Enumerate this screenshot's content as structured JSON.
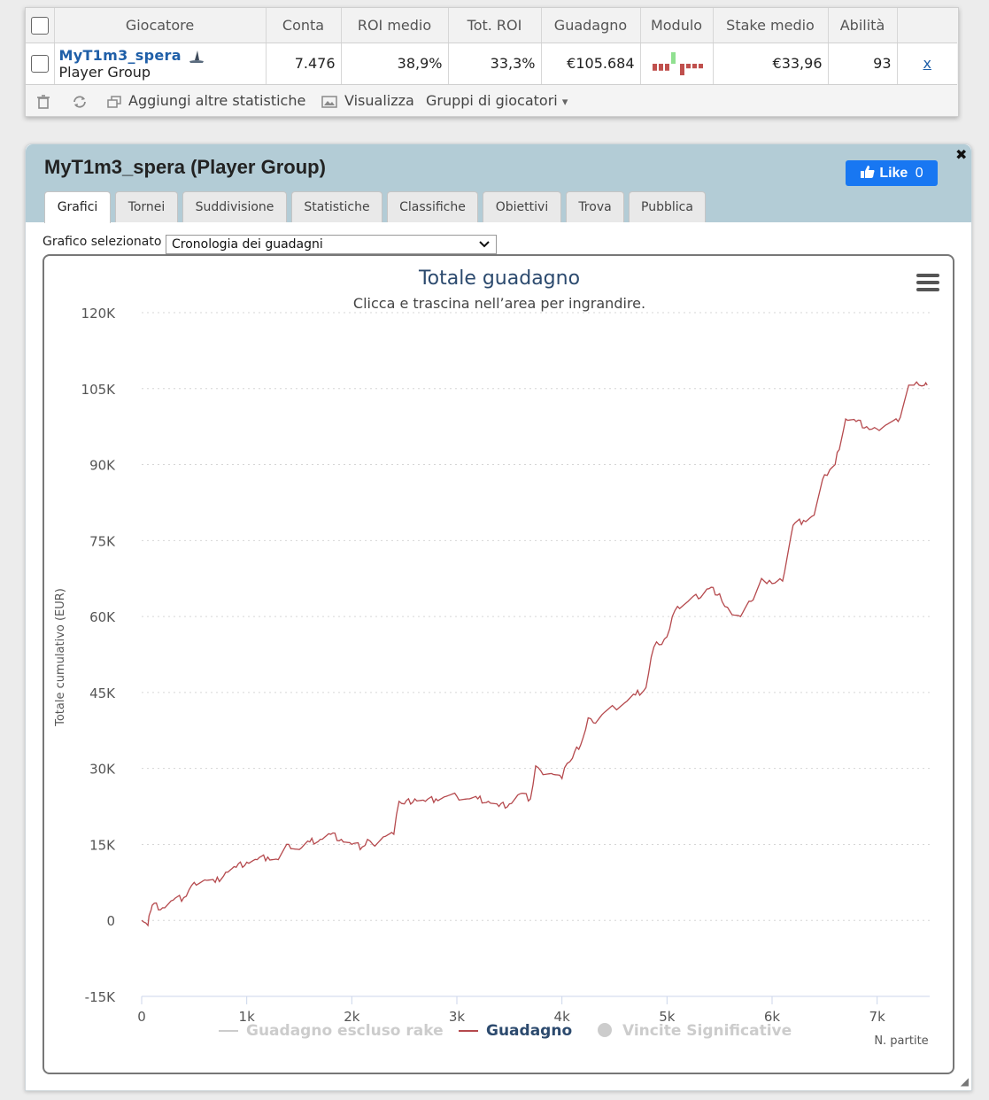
{
  "table": {
    "headers": [
      "Giocatore",
      "Conta",
      "ROI medio",
      "Tot. ROI",
      "Guadagno",
      "Modulo",
      "Stake medio",
      "Abilità"
    ],
    "row": {
      "name": "MyT1m3_spera",
      "group": "Player Group",
      "conta": "7.476",
      "roi_medio": "38,9%",
      "tot_roi": "33,3%",
      "guadagno": "€105.684",
      "stake_medio": "€33,96",
      "abilita": "93",
      "remove": "x"
    },
    "form_bars": [
      {
        "color": "#c0504d",
        "value": -3
      },
      {
        "color": "#c0504d",
        "value": -3
      },
      {
        "color": "#c0504d",
        "value": -3
      },
      {
        "color": "#90e090",
        "value": 5
      },
      {
        "color": "#c0504d",
        "value": -5
      },
      {
        "color": "#c0504d",
        "value": -2
      },
      {
        "color": "#c0504d",
        "value": -2
      },
      {
        "color": "#c0504d",
        "value": -2
      }
    ]
  },
  "toolbar": {
    "add_stats": "Aggiungi altre statistiche",
    "view": "Visualizza",
    "groups": "Gruppi di giocatori",
    "groups_arrow": "▾",
    "icons": [
      "trash-icon",
      "refresh-icon",
      "copy-icon",
      "image-icon"
    ]
  },
  "panel": {
    "title": "MyT1m3_spera (Player Group)",
    "like_label": "Like",
    "like_count": "0",
    "close_label": "✖",
    "tabs": [
      "Grafici",
      "Tornei",
      "Suddivisione",
      "Statistiche",
      "Classifiche",
      "Obiettivi",
      "Trova",
      "Pubblica"
    ],
    "active_tab": "Grafici",
    "selector_label": "Grafico selezionato",
    "selector_value": "Cronologia dei guadagni"
  },
  "chart_data": {
    "type": "line",
    "title": "Totale guadagno",
    "subtitle": "Clicca e trascina nell’area per ingrandire.",
    "ylabel": "Totale cumulativo (EUR)",
    "xlabel": "N. partite",
    "ylim": [
      -15000,
      120000
    ],
    "xlim": [
      0,
      7500
    ],
    "yticks": [
      "120K",
      "105K",
      "90K",
      "75K",
      "60K",
      "45K",
      "30K",
      "15K",
      "0",
      "-15K"
    ],
    "xticks": [
      "0",
      "1k",
      "2k",
      "3k",
      "4k",
      "5k",
      "6k",
      "7k"
    ],
    "grid": true,
    "legend": [
      {
        "name": "Guadagno escluso rake",
        "color": "#cccccc",
        "kind": "line"
      },
      {
        "name": "Guadagno",
        "color": "#b5494d",
        "kind": "line"
      },
      {
        "name": "Vincite Significative",
        "color": "#cccccc",
        "kind": "dot"
      }
    ],
    "series": [
      {
        "name": "Guadagno",
        "color": "#b5494d",
        "x": [
          0,
          60,
          80,
          100,
          200,
          300,
          400,
          450,
          500,
          600,
          700,
          800,
          900,
          1000,
          1100,
          1200,
          1300,
          1400,
          1500,
          1600,
          1700,
          1800,
          1900,
          2000,
          2100,
          2150,
          2200,
          2300,
          2400,
          2450,
          2500,
          2600,
          2700,
          2800,
          2900,
          3000,
          3100,
          3200,
          3300,
          3400,
          3500,
          3600,
          3700,
          3750,
          3800,
          3900,
          4000,
          4050,
          4100,
          4200,
          4250,
          4300,
          4400,
          4500,
          4600,
          4700,
          4800,
          4850,
          4900,
          4950,
          5000,
          5050,
          5100,
          5200,
          5250,
          5300,
          5400,
          5500,
          5550,
          5600,
          5700,
          5800,
          5900,
          5950,
          6000,
          6050,
          6100,
          6200,
          6300,
          6400,
          6500,
          6550,
          6600,
          6700,
          6800,
          6900,
          6950,
          7000,
          7100,
          7200,
          7300,
          7350,
          7400,
          7450,
          7476
        ],
        "y": [
          0,
          -1000,
          1500,
          3000,
          2500,
          4000,
          4500,
          6000,
          7500,
          8000,
          7500,
          9500,
          10500,
          11500,
          12000,
          12500,
          12000,
          15000,
          14000,
          15500,
          16000,
          17000,
          16000,
          15000,
          14500,
          16000,
          15000,
          16500,
          17000,
          23500,
          23000,
          24000,
          23500,
          24000,
          24500,
          24500,
          24000,
          24000,
          23500,
          22500,
          23000,
          25000,
          24000,
          30500,
          29500,
          29000,
          28000,
          31000,
          32000,
          36000,
          40000,
          39000,
          41000,
          42000,
          43000,
          44500,
          46000,
          52000,
          55000,
          54500,
          56000,
          60000,
          62000,
          63000,
          64000,
          63500,
          65500,
          64500,
          62000,
          61000,
          60000,
          63000,
          67500,
          66500,
          66500,
          67000,
          67000,
          78000,
          79000,
          80000,
          88000,
          89000,
          90000,
          99000,
          98500,
          97500,
          97000,
          97000,
          98000,
          98500,
          105684,
          105684,
          105684,
          105684,
          105684
        ]
      }
    ]
  }
}
